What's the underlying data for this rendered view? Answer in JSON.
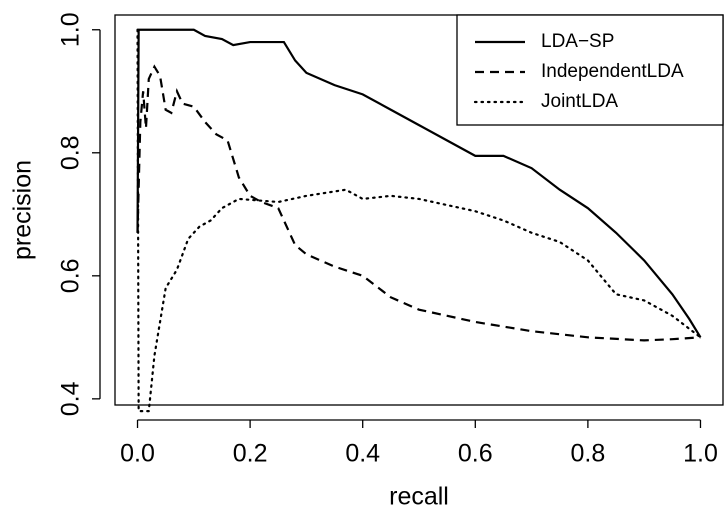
{
  "chart_data": {
    "type": "line",
    "x_label": "recall",
    "y_label": "precision",
    "xlim": [
      -0.04,
      1.04
    ],
    "ylim": [
      0.39,
      1.024
    ],
    "xticks": [
      {
        "value": 0,
        "label": "0.0"
      },
      0.2,
      0.4,
      0.6,
      0.8,
      {
        "value": 1,
        "label": "1.0"
      }
    ],
    "yticks": [
      0.4,
      0.6,
      0.8,
      {
        "value": 1,
        "label": "1.0"
      }
    ],
    "legend": "top-right",
    "series": [
      {
        "name": "LDA−SP",
        "color": "#000000",
        "line_style": "solid",
        "x": [
          0,
          0.002,
          0.1,
          0.12,
          0.15,
          0.17,
          0.2,
          0.26,
          0.28,
          0.3,
          0.35,
          0.4,
          0.45,
          0.5,
          0.55,
          0.6,
          0.65,
          0.7,
          0.75,
          0.8,
          0.85,
          0.9,
          0.95,
          0.98,
          1.0
        ],
        "values": [
          0.67,
          1.0,
          1.0,
          0.99,
          0.985,
          0.975,
          0.98,
          0.98,
          0.95,
          0.93,
          0.91,
          0.895,
          0.87,
          0.845,
          0.82,
          0.795,
          0.795,
          0.775,
          0.74,
          0.71,
          0.67,
          0.625,
          0.57,
          0.53,
          0.5
        ]
      },
      {
        "name": "IndependentLDA",
        "color": "#000000",
        "line_style": "dashed",
        "x": [
          0,
          0.005,
          0.01,
          0.015,
          0.02,
          0.03,
          0.04,
          0.05,
          0.06,
          0.07,
          0.08,
          0.1,
          0.12,
          0.14,
          0.16,
          0.18,
          0.2,
          0.22,
          0.25,
          0.28,
          0.3,
          0.35,
          0.4,
          0.45,
          0.5,
          0.6,
          0.7,
          0.8,
          0.9,
          0.95,
          1.0
        ],
        "values": [
          0.67,
          0.85,
          0.9,
          0.84,
          0.92,
          0.94,
          0.925,
          0.87,
          0.865,
          0.9,
          0.88,
          0.875,
          0.85,
          0.83,
          0.82,
          0.76,
          0.73,
          0.72,
          0.71,
          0.65,
          0.635,
          0.615,
          0.6,
          0.565,
          0.545,
          0.525,
          0.51,
          0.5,
          0.495,
          0.497,
          0.5
        ]
      },
      {
        "name": "JointLDA",
        "color": "#000000",
        "line_style": "dotted",
        "x": [
          0,
          0.002,
          0.02,
          0.03,
          0.05,
          0.07,
          0.09,
          0.11,
          0.13,
          0.15,
          0.18,
          0.25,
          0.3,
          0.37,
          0.4,
          0.45,
          0.5,
          0.6,
          0.65,
          0.7,
          0.75,
          0.8,
          0.85,
          0.9,
          0.95,
          1.0
        ],
        "values": [
          1.0,
          0.38,
          0.38,
          0.47,
          0.58,
          0.61,
          0.66,
          0.68,
          0.69,
          0.71,
          0.725,
          0.72,
          0.73,
          0.74,
          0.725,
          0.73,
          0.725,
          0.705,
          0.69,
          0.67,
          0.655,
          0.625,
          0.57,
          0.56,
          0.535,
          0.5
        ]
      }
    ]
  }
}
